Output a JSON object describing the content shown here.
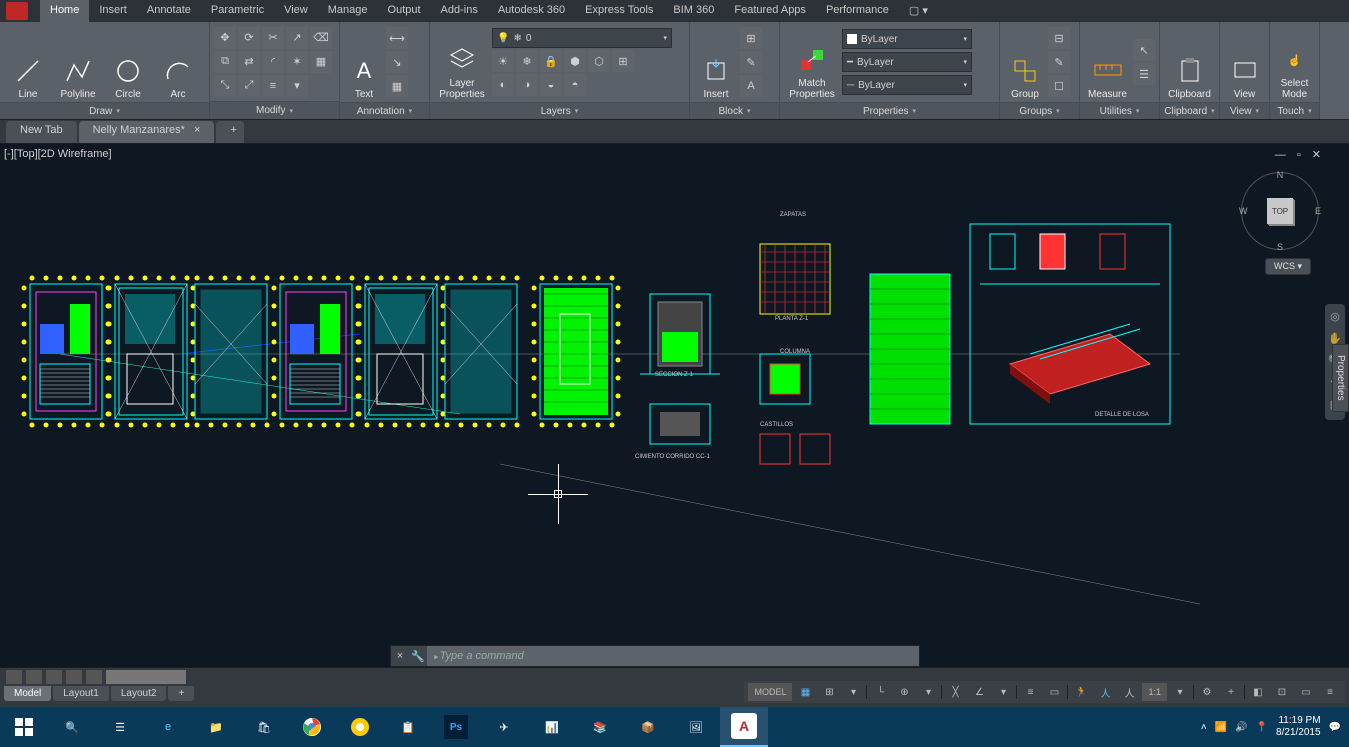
{
  "ribbon_tabs": [
    "Home",
    "Insert",
    "Annotate",
    "Parametric",
    "View",
    "Manage",
    "Output",
    "Add-ins",
    "Autodesk 360",
    "Express Tools",
    "BIM 360",
    "Featured Apps",
    "Performance"
  ],
  "active_ribbon_tab": "Home",
  "panels": {
    "draw": {
      "label": "Draw",
      "buttons": [
        "Line",
        "Polyline",
        "Circle",
        "Arc"
      ]
    },
    "modify": {
      "label": "Modify"
    },
    "annotation": {
      "label": "Annotation",
      "text_btn": "Text"
    },
    "layers": {
      "label": "Layers",
      "btn": "Layer\nProperties",
      "combo_value": "0"
    },
    "block": {
      "label": "Block",
      "btn": "Insert"
    },
    "properties": {
      "label": "Properties",
      "btn": "Match\nProperties",
      "bylayer": "ByLayer",
      "line1": "ByLayer",
      "line2": "ByLayer"
    },
    "groups": {
      "label": "Groups",
      "btn": "Group"
    },
    "utilities": {
      "label": "Utilities",
      "btn": "Measure"
    },
    "clipboard": {
      "label": "Clipboard",
      "btn": "Clipboard"
    },
    "view": {
      "label": "View",
      "btn": "View"
    },
    "touch": {
      "label": "Touch",
      "btn": "Select\nMode"
    }
  },
  "file_tabs": {
    "items": [
      "New Tab",
      "Nelly Manzanares*"
    ],
    "active": 1
  },
  "viewport": {
    "label": "[-][Top][2D Wireframe]",
    "cube": "TOP",
    "wcs": "WCS",
    "properties_tab": "Properties"
  },
  "drawing_labels": {
    "zapatas": "ZAPATAS",
    "seccion": "SECCION Z-1",
    "planta": "PLANTA Z-1",
    "cimiento": "CIMIENTO CORRIDO CC-1",
    "columna": "COLUMNA",
    "castillos": "CASTILLOS",
    "detalle": "DETALLE DE LOSA"
  },
  "colors": {
    "cyan": "#00ffff",
    "green": "#00ff00",
    "yellow": "#ffff00",
    "red": "#ff3030",
    "magenta": "#ff40ff",
    "blue": "#3060ff",
    "white": "#ffffff",
    "dark": "#0d1822"
  },
  "command": {
    "placeholder": "Type a command"
  },
  "layout_tabs": {
    "items": [
      "Model",
      "Layout1",
      "Layout2"
    ],
    "active": 0
  },
  "status": {
    "model": "MODEL",
    "scale": "1:1"
  },
  "taskbar": {
    "time": "11:19 PM",
    "date": "8/21/2015"
  }
}
